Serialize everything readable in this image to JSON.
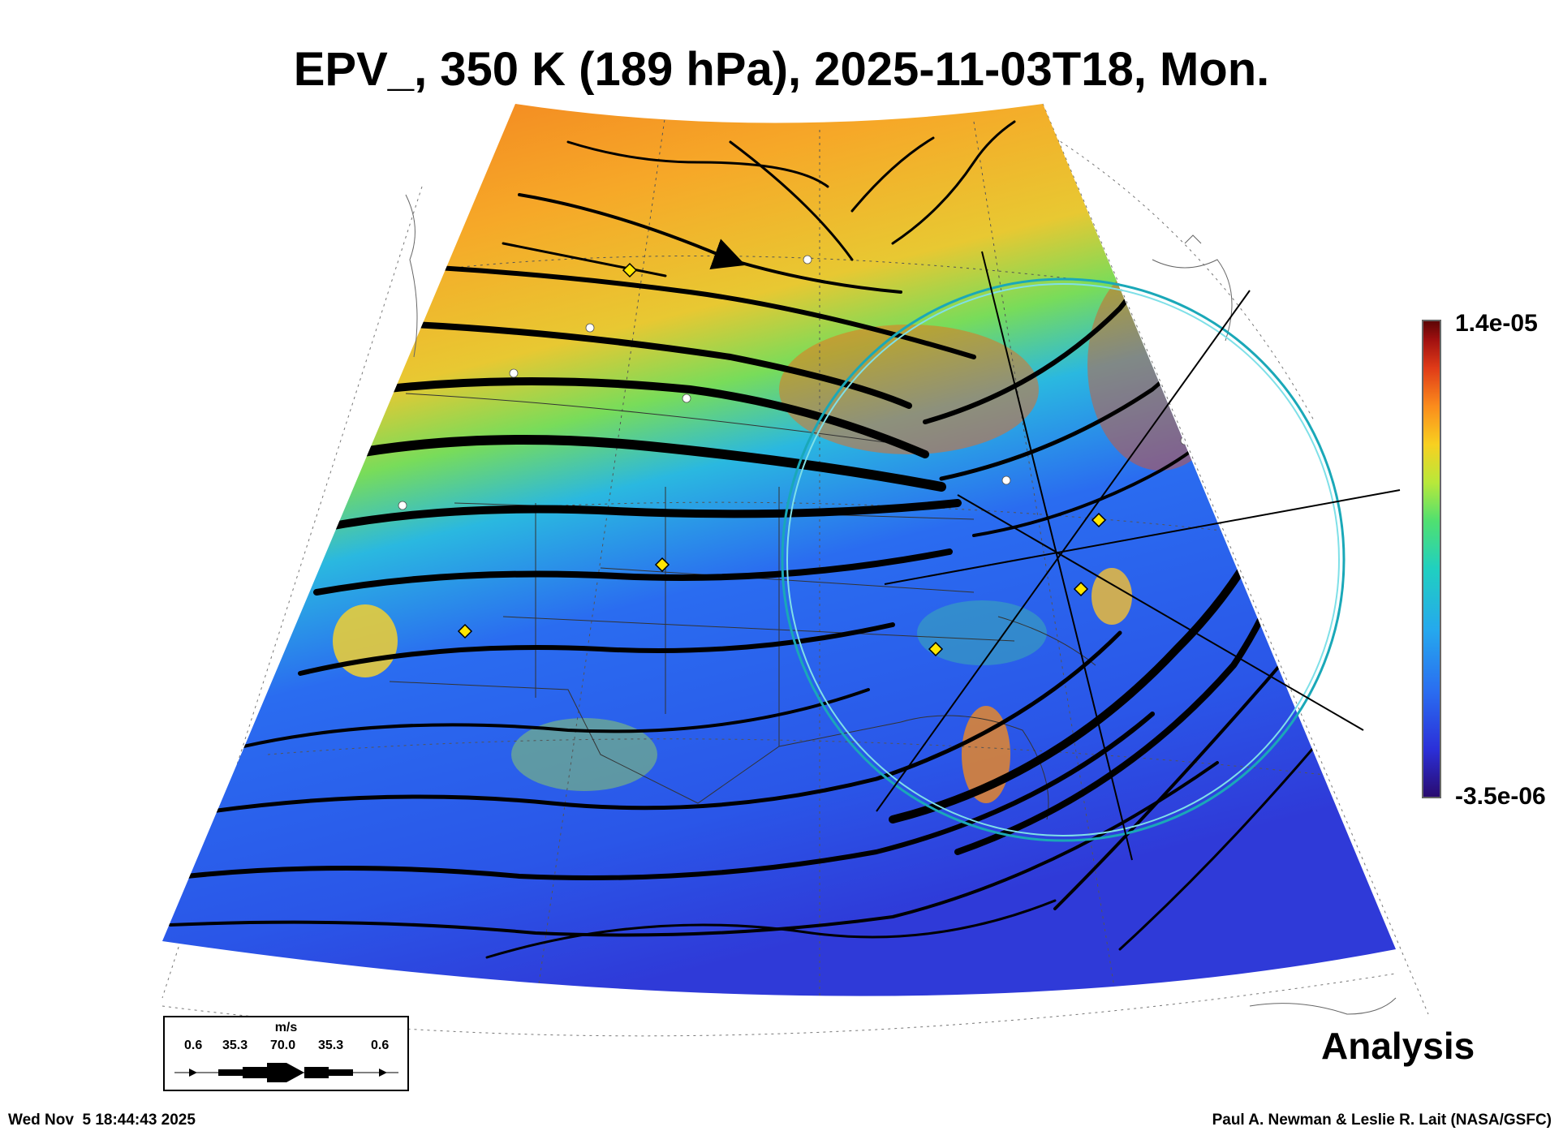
{
  "title": "EPV_, 350 K (189 hPa), 2025-11-03T18, Mon.",
  "colorbar": {
    "max_label": "1.4e-05",
    "min_label": "-3.5e-06",
    "colors": [
      "#2a0b6e",
      "#2b2fd8",
      "#2a6cf0",
      "#25a8ee",
      "#20d0c0",
      "#50e070",
      "#b8e83a",
      "#f8d020",
      "#fb8c1c",
      "#e03b18",
      "#a01010",
      "#5a0505"
    ]
  },
  "legend": {
    "unit": "m/s",
    "values": [
      "0.6",
      "35.3",
      "70.0",
      "35.3",
      "0.6"
    ]
  },
  "label_analysis": "Analysis",
  "footer": {
    "timestamp": "Wed Nov  5 18:44:43 2025",
    "credit": "Paul A. Newman & Leslie R. Lait (NASA/GSFC)"
  }
}
